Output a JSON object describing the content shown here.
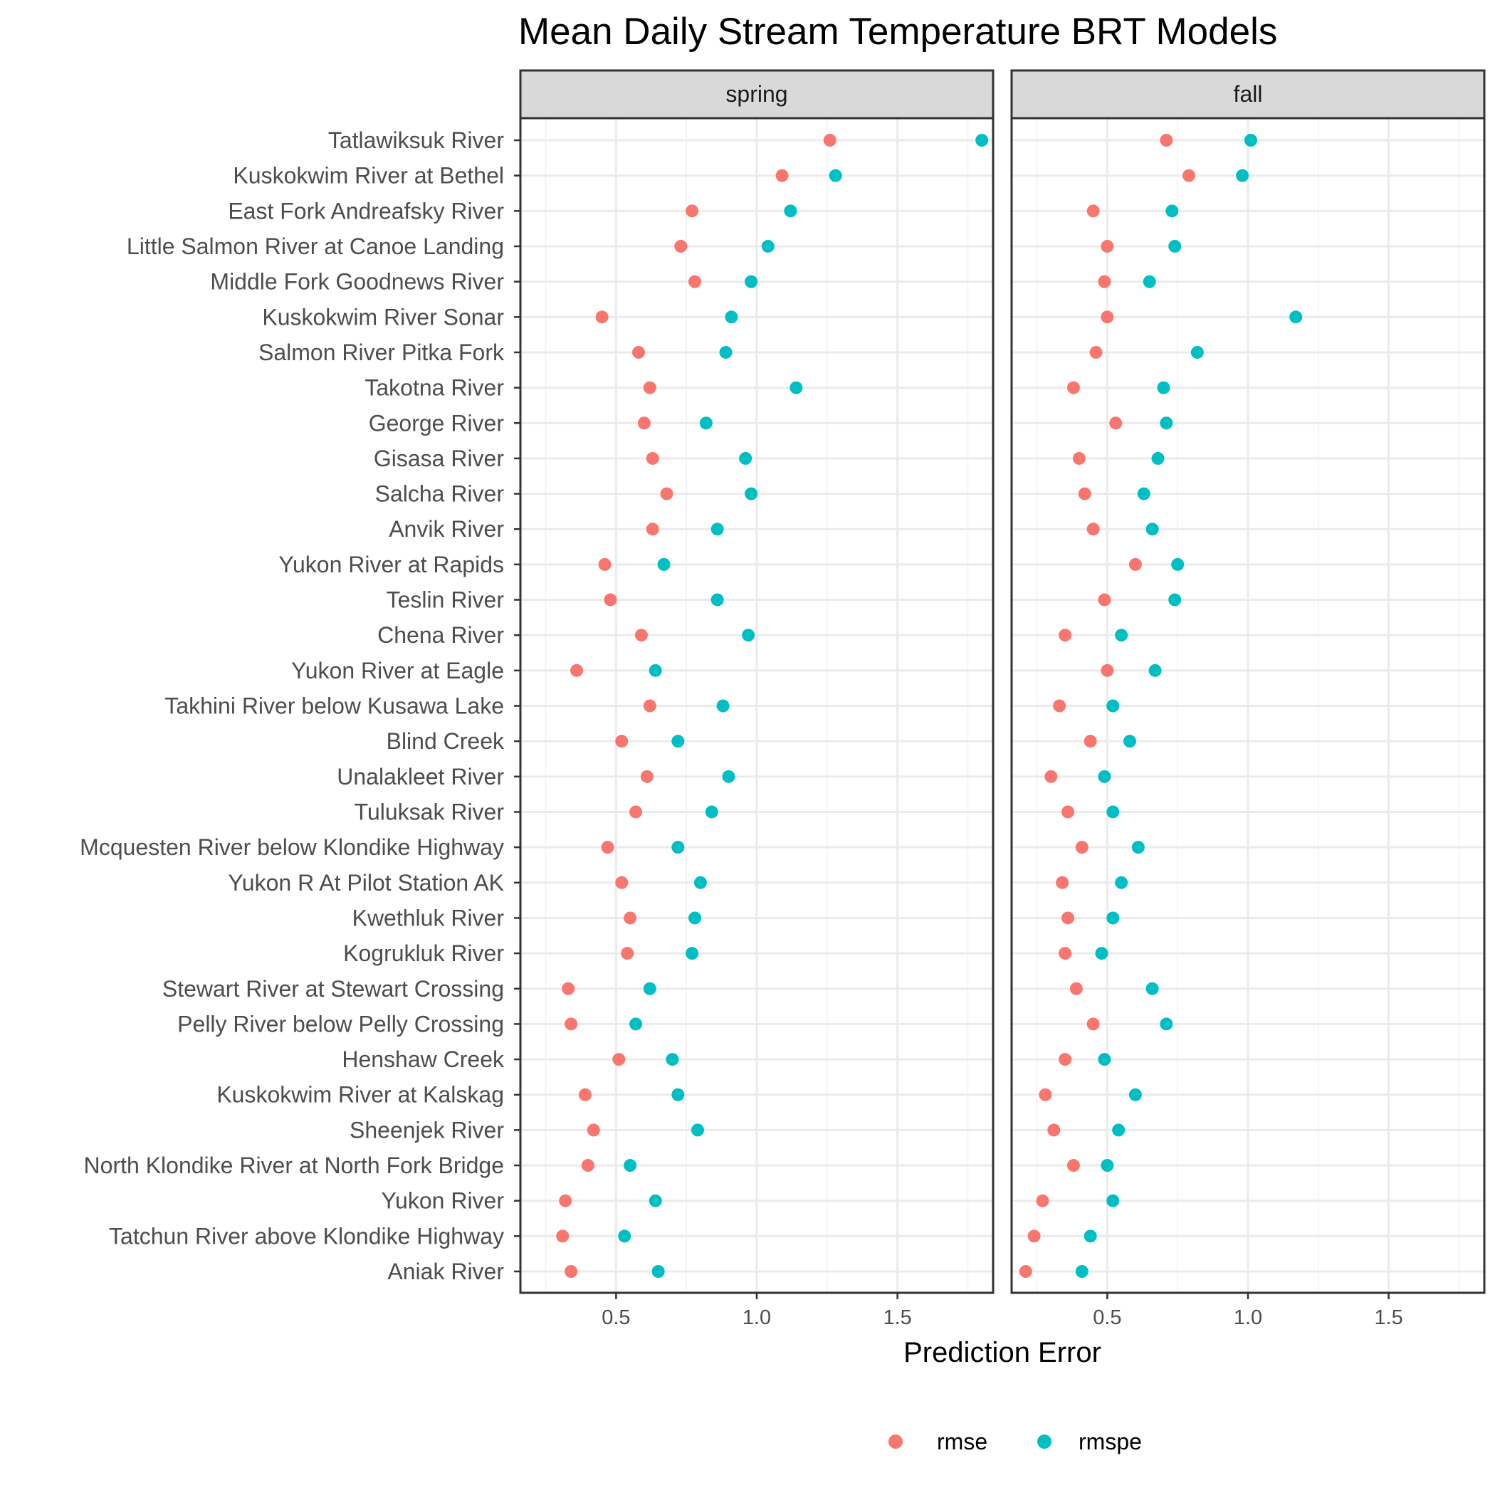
{
  "chart_data": {
    "type": "scatter",
    "title": "Mean Daily Stream Temperature BRT Models",
    "xlabel": "Prediction Error",
    "ylabel": "",
    "xlim": [
      0.16,
      1.84
    ],
    "xticks": [
      0.5,
      1.0,
      1.5
    ],
    "xtick_labels": [
      "0.5",
      "1.0",
      "1.5"
    ],
    "grid": true,
    "legend_position": "bottom",
    "colors": {
      "rmse": "#F8766D",
      "rmspe": "#00BFC4"
    },
    "legend": [
      "rmse",
      "rmspe"
    ],
    "panels": [
      "spring",
      "fall"
    ],
    "categories": [
      "Tatlawiksuk River",
      "Kuskokwim River at Bethel",
      "East Fork Andreafsky River",
      "Little Salmon River at Canoe Landing",
      "Middle Fork Goodnews River",
      "Kuskokwim River Sonar",
      "Salmon River Pitka Fork",
      "Takotna River",
      "George River",
      "Gisasa River",
      "Salcha River",
      "Anvik River",
      "Yukon River at Rapids",
      "Teslin River",
      "Chena River",
      "Yukon River at Eagle",
      "Takhini River below Kusawa Lake",
      "Blind Creek",
      "Unalakleet River",
      "Tuluksak River",
      "Mcquesten River below Klondike Highway",
      "Yukon R At Pilot Station AK",
      "Kwethluk River",
      "Kogrukluk River",
      "Stewart River at Stewart Crossing",
      "Pelly River below Pelly Crossing",
      "Henshaw Creek",
      "Kuskokwim River at Kalskag",
      "Sheenjek River",
      "North Klondike River at North Fork Bridge",
      "Yukon River",
      "Tatchun River above Klondike Highway",
      "Aniak River"
    ],
    "series": {
      "spring": {
        "rmse": [
          1.26,
          1.09,
          0.77,
          0.73,
          0.78,
          0.45,
          0.58,
          0.62,
          0.6,
          0.63,
          0.68,
          0.63,
          0.46,
          0.48,
          0.59,
          0.36,
          0.62,
          0.52,
          0.61,
          0.57,
          0.47,
          0.52,
          0.55,
          0.54,
          0.33,
          0.34,
          0.51,
          0.39,
          0.42,
          0.4,
          0.32,
          0.31,
          0.34
        ],
        "rmspe": [
          1.8,
          1.28,
          1.12,
          1.04,
          0.98,
          0.91,
          0.89,
          1.14,
          0.82,
          0.96,
          0.98,
          0.86,
          0.67,
          0.86,
          0.97,
          0.64,
          0.88,
          0.72,
          0.9,
          0.84,
          0.72,
          0.8,
          0.78,
          0.77,
          0.62,
          0.57,
          0.7,
          0.72,
          0.79,
          0.55,
          0.64,
          0.53,
          0.65
        ]
      },
      "fall": {
        "rmse": [
          0.71,
          0.79,
          0.45,
          0.5,
          0.49,
          0.5,
          0.46,
          0.38,
          0.53,
          0.4,
          0.42,
          0.45,
          0.6,
          0.49,
          0.35,
          0.5,
          0.33,
          0.44,
          0.3,
          0.36,
          0.41,
          0.34,
          0.36,
          0.35,
          0.39,
          0.45,
          0.35,
          0.28,
          0.31,
          0.38,
          0.27,
          0.24,
          0.21
        ],
        "rmspe": [
          1.01,
          0.98,
          0.73,
          0.74,
          0.65,
          1.17,
          0.82,
          0.7,
          0.71,
          0.68,
          0.63,
          0.66,
          0.75,
          0.74,
          0.55,
          0.67,
          0.52,
          0.58,
          0.49,
          0.52,
          0.61,
          0.55,
          0.52,
          0.48,
          0.66,
          0.71,
          0.49,
          0.6,
          0.54,
          0.5,
          0.52,
          0.44,
          0.41
        ]
      }
    }
  }
}
